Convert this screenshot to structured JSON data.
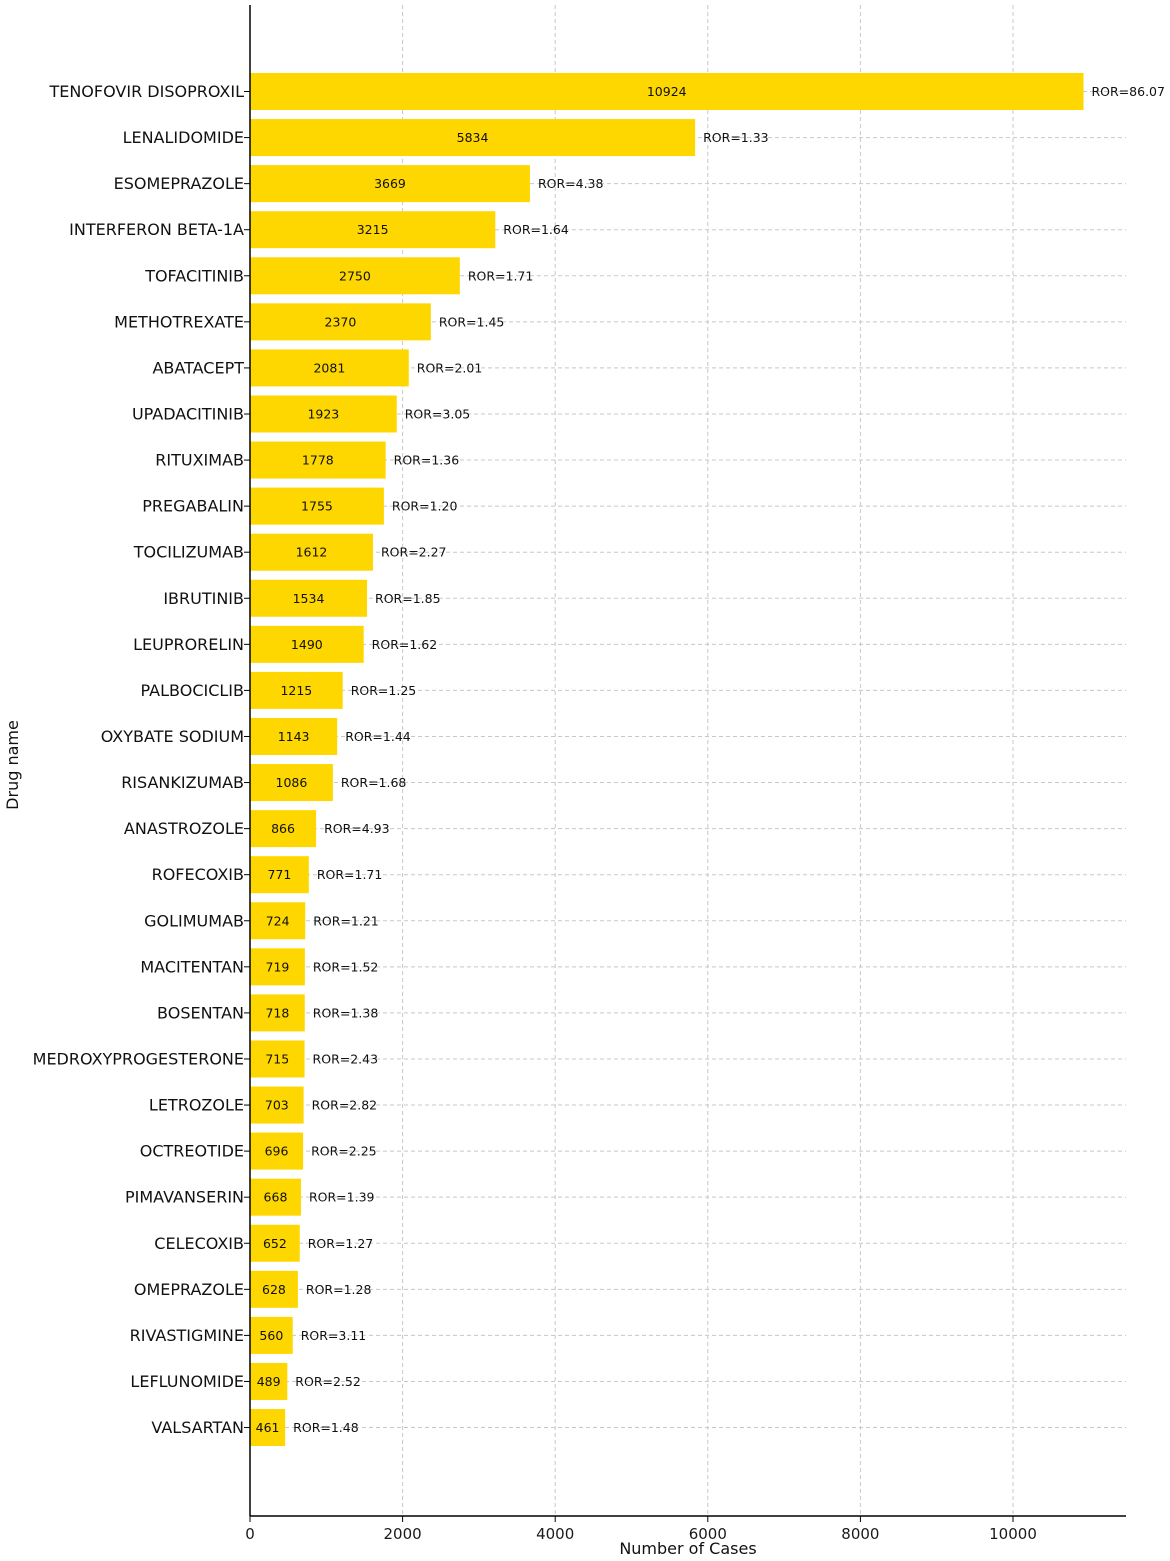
{
  "chart_data": {
    "type": "bar",
    "orientation": "horizontal",
    "xlabel": "Number of Cases",
    "ylabel": "Drug name",
    "xlim": [
      0,
      11500
    ],
    "xticks": [
      0,
      2000,
      4000,
      6000,
      8000,
      10000
    ],
    "grid": true,
    "bar_color": "#FFD700",
    "categories": [
      "TENOFOVIR DISOPROXIL",
      "LENALIDOMIDE",
      "ESOMEPRAZOLE",
      "INTERFERON BETA-1A",
      "TOFACITINIB",
      "METHOTREXATE",
      "ABATACEPT",
      "UPADACITINIB",
      "RITUXIMAB",
      "PREGABALIN",
      "TOCILIZUMAB",
      "IBRUTINIB",
      "LEUPRORELIN",
      "PALBOCICLIB",
      "OXYBATE SODIUM",
      "RISANKIZUMAB",
      "ANASTROZOLE",
      "ROFECOXIB",
      "GOLIMUMAB",
      "MACITENTAN",
      "BOSENTAN",
      "MEDROXYPROGESTERONE",
      "LETROZOLE",
      "OCTREOTIDE",
      "PIMAVANSERIN",
      "CELECOXIB",
      "OMEPRAZOLE",
      "RIVASTIGMINE",
      "LEFLUNOMIDE",
      "VALSARTAN"
    ],
    "values": [
      10924,
      5834,
      3669,
      3215,
      2750,
      2370,
      2081,
      1923,
      1778,
      1755,
      1612,
      1534,
      1490,
      1215,
      1143,
      1086,
      866,
      771,
      724,
      719,
      718,
      715,
      703,
      696,
      668,
      652,
      628,
      560,
      489,
      461
    ],
    "annotations": [
      "ROR=86.07",
      "ROR=1.33",
      "ROR=4.38",
      "ROR=1.64",
      "ROR=1.71",
      "ROR=1.45",
      "ROR=2.01",
      "ROR=3.05",
      "ROR=1.36",
      "ROR=1.20",
      "ROR=2.27",
      "ROR=1.85",
      "ROR=1.62",
      "ROR=1.25",
      "ROR=1.44",
      "ROR=1.68",
      "ROR=4.93",
      "ROR=1.71",
      "ROR=1.21",
      "ROR=1.52",
      "ROR=1.38",
      "ROR=2.43",
      "ROR=2.82",
      "ROR=2.25",
      "ROR=1.39",
      "ROR=1.27",
      "ROR=1.28",
      "ROR=3.11",
      "ROR=2.52",
      "ROR=1.48"
    ]
  }
}
